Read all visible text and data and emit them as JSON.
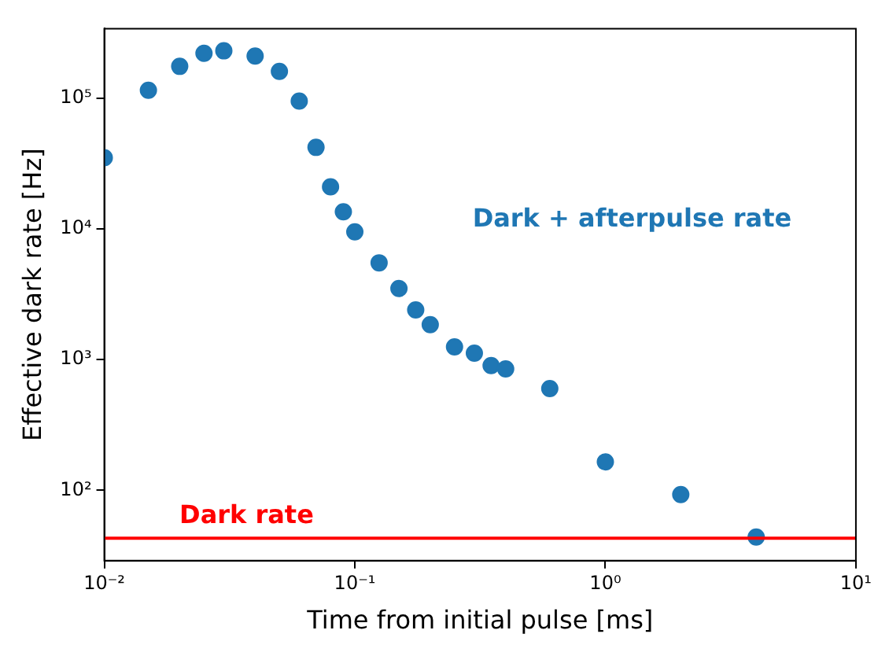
{
  "chart_data": {
    "type": "scatter",
    "xlabel": "Time from initial pulse [ms]",
    "ylabel": "Effective dark rate [Hz]",
    "log": "xy",
    "grid": false,
    "legend": false,
    "marker": "circle",
    "xlim": [
      0.01,
      10
    ],
    "xticks": [
      {
        "value": 0.01,
        "label": "10⁻²"
      },
      {
        "value": 0.1,
        "label": "10⁻¹"
      },
      {
        "value": 1,
        "label": "10⁰"
      },
      {
        "value": 10,
        "label": "10¹"
      }
    ],
    "ylim": [
      29,
      340000
    ],
    "yticks": [
      {
        "value": 100,
        "label": "10²"
      },
      {
        "value": 1000,
        "label": "10³"
      },
      {
        "value": 10000,
        "label": "10⁴"
      },
      {
        "value": 100000,
        "label": "10⁵"
      }
    ],
    "series": [
      {
        "name": "Dark + afterpulse rate",
        "color": "#1f77b4",
        "x": [
          0.01,
          0.015,
          0.02,
          0.025,
          0.03,
          0.04,
          0.05,
          0.06,
          0.07,
          0.08,
          0.09,
          0.1,
          0.125,
          0.15,
          0.175,
          0.2,
          0.25,
          0.3,
          0.35,
          0.4,
          0.6,
          1,
          2,
          4
        ],
        "values": [
          35000,
          115000,
          175000,
          220000,
          230000,
          210000,
          160000,
          95000,
          42000,
          21000,
          13500,
          9500,
          5500,
          3500,
          2400,
          1850,
          1250,
          1120,
          900,
          850,
          600,
          165,
          93,
          44
        ]
      }
    ],
    "ref_lines": [
      {
        "axis": "y",
        "value": 43,
        "label": "Dark rate",
        "color": "#ff0000"
      }
    ]
  }
}
